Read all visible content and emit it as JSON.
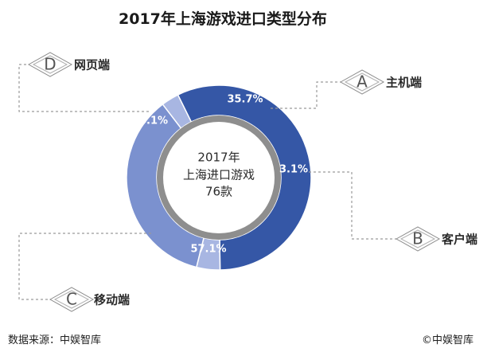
{
  "chart_data": {
    "type": "pie",
    "title": "2017年上海游戏进口类型分布",
    "center_text": [
      "2017年",
      "上海进口游戏",
      "76款"
    ],
    "slices": [
      {
        "label": "主机端",
        "letter": "A",
        "value": 35.7,
        "value_label": "35.7%",
        "color": "#7b91cf"
      },
      {
        "label": "客户端",
        "letter": "B",
        "value": 3.1,
        "value_label": "3.1%",
        "color": "#a8b6e2"
      },
      {
        "label": "移动端",
        "letter": "C",
        "value": 57.1,
        "value_label": "57.1%",
        "color": "#3557a6"
      },
      {
        "label": "网页端",
        "letter": "D",
        "value": 4.1,
        "value_label": "4.1%",
        "color": "#a8b6e2"
      }
    ]
  },
  "footer": {
    "source": "数据来源：中娱智库",
    "copyright": "©中娱智库"
  }
}
